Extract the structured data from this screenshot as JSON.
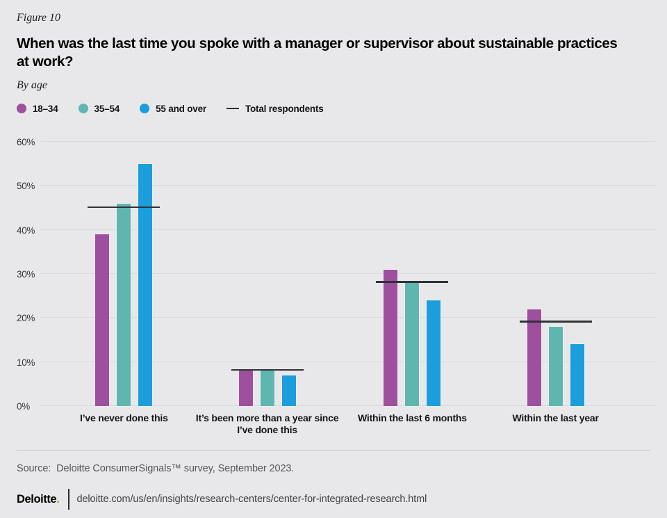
{
  "header": {
    "figure_label": "Figure 10",
    "title_line1": "When was the last time you spoke with a manager or supervisor about sustainable practices",
    "title_line2": "at work?",
    "subtitle": "By age"
  },
  "legend": {
    "items": [
      {
        "label": "18–34",
        "marker": "circle",
        "color": "#9e4f9d"
      },
      {
        "label": "35–54",
        "marker": "circle",
        "color": "#5fb6b1"
      },
      {
        "label": "55 and over",
        "marker": "circle",
        "color": "#1b9edb"
      },
      {
        "label": "Total respondents",
        "marker": "line",
        "color": "#2b2d33"
      }
    ]
  },
  "chart_data": {
    "type": "bar",
    "categories": [
      "I’ve never done this",
      "It’s been more than a year since I’ve done this",
      "Within the last 6 months",
      "Within the last year"
    ],
    "series": [
      {
        "name": "18-34",
        "color": "#9e4f9d",
        "values": [
          39,
          8,
          31,
          22
        ]
      },
      {
        "name": "35-54",
        "color": "#5fb6b1",
        "values": [
          46,
          8,
          28,
          18
        ]
      },
      {
        "name": "55-and-over",
        "color": "#1b9edb",
        "values": [
          55,
          7,
          24,
          14
        ]
      }
    ],
    "total_respondents": {
      "name": "Total respondents",
      "color": "#303238",
      "values": [
        45,
        8,
        28,
        19
      ]
    },
    "y_ticks": [
      "0%",
      "10%",
      "20%",
      "30%",
      "40%",
      "50%",
      "60%"
    ],
    "ylim": [
      0,
      60
    ],
    "grid": true,
    "legend_position": "top",
    "colors": {
      "purple": "#9e4f9d",
      "teal": "#5fb6b1",
      "blue": "#1b9edb",
      "total_line": "#303238",
      "background": "#e8e8ea"
    }
  },
  "footer": {
    "source": "Source:  Deloitte ConsumerSignals™ survey, September 2023.",
    "logo_text": "Deloitte",
    "logo_dot": ".",
    "url": "deloitte.com/us/en/insights/research-centers/center-for-integrated-research.html"
  }
}
